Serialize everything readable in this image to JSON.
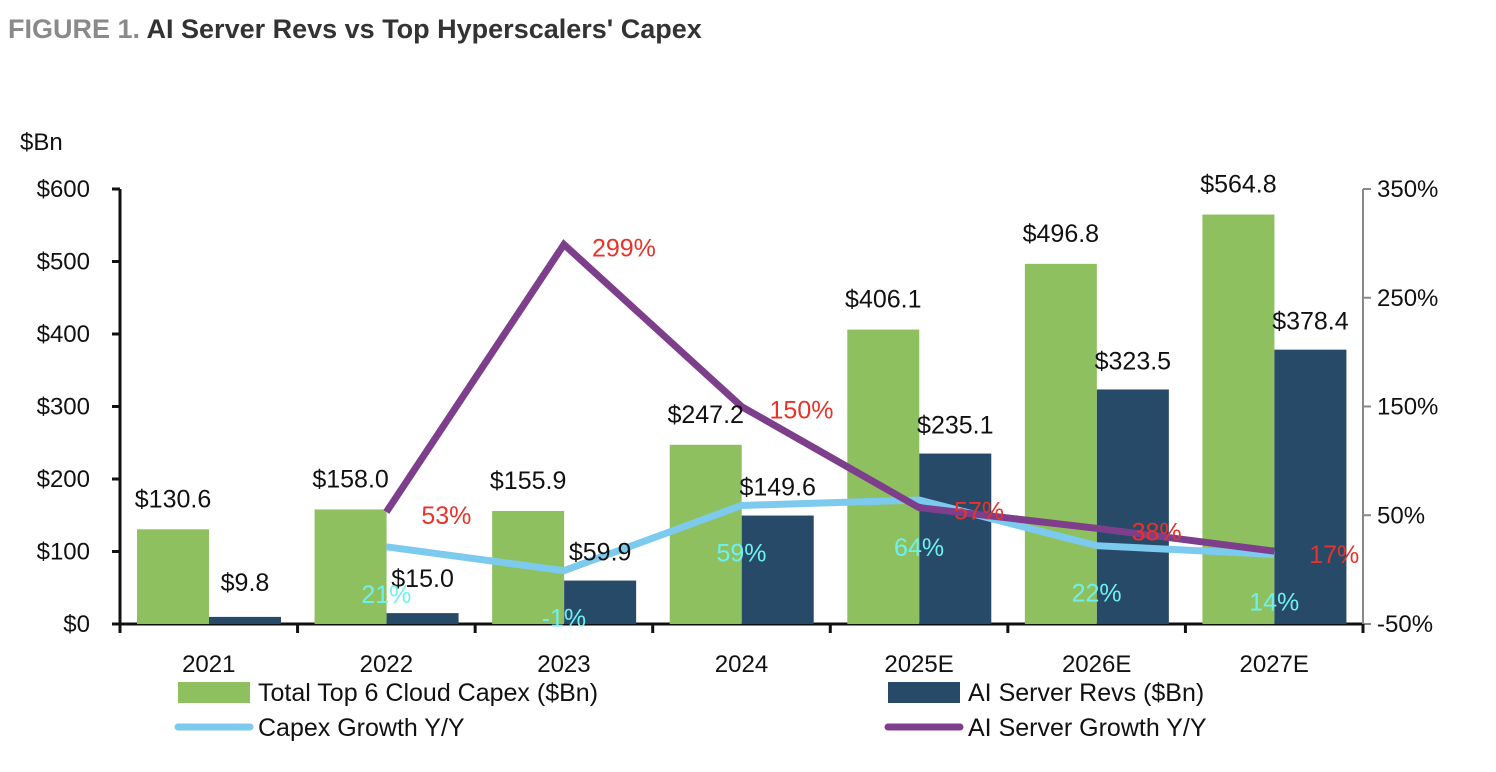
{
  "chart_data": {
    "type": "bar",
    "title_prefix": "FIGURE 1.",
    "title": "AI Server Revs vs Top Hyperscalers' Capex",
    "ylabel": "$Bn",
    "ylim": [
      0,
      600
    ],
    "y_ticks": [
      "$0",
      "$100",
      "$200",
      "$300",
      "$400",
      "$500",
      "$600"
    ],
    "y2lim": [
      -50,
      350
    ],
    "y2_ticks": [
      "-50%",
      "50%",
      "150%",
      "250%",
      "350%"
    ],
    "categories": [
      "2021",
      "2022",
      "2023",
      "2024",
      "2025E",
      "2026E",
      "2027E"
    ],
    "bar_series": [
      {
        "name": "Total Top 6 Cloud Capex ($Bn)",
        "color": "#8fc05f",
        "values": [
          130.6,
          158.0,
          155.9,
          247.2,
          406.1,
          496.8,
          564.8
        ],
        "labels": [
          "$130.6",
          "$158.0",
          "$155.9",
          "$247.2",
          "$406.1",
          "$496.8",
          "$564.8"
        ]
      },
      {
        "name": "AI Server Revs ($Bn)",
        "color": "#274a69",
        "values": [
          9.8,
          15.0,
          59.9,
          149.6,
          235.1,
          323.5,
          378.4
        ],
        "labels": [
          "$9.8",
          "$15.0",
          "$59.9",
          "$149.6",
          "$235.1",
          "$323.5",
          "$378.4"
        ]
      }
    ],
    "line_series": [
      {
        "name": "Capex Growth Y/Y",
        "color": "#7dcaef",
        "label_color": "#6ff0f0",
        "axis": "right",
        "start_index": 1,
        "values": [
          21,
          -1,
          59,
          64,
          22,
          14
        ],
        "labels": [
          "21%",
          "-1%",
          "59%",
          "64%",
          "22%",
          "14%"
        ]
      },
      {
        "name": "AI Server Growth Y/Y",
        "color": "#7d3f8c",
        "label_color": "#e8322a",
        "axis": "right",
        "start_index": 1,
        "values": [
          53,
          299,
          150,
          57,
          38,
          17
        ],
        "labels": [
          "53%",
          "299%",
          "150%",
          "57%",
          "38%",
          "17%"
        ]
      }
    ],
    "legend_position": "bottom",
    "grid": false
  }
}
